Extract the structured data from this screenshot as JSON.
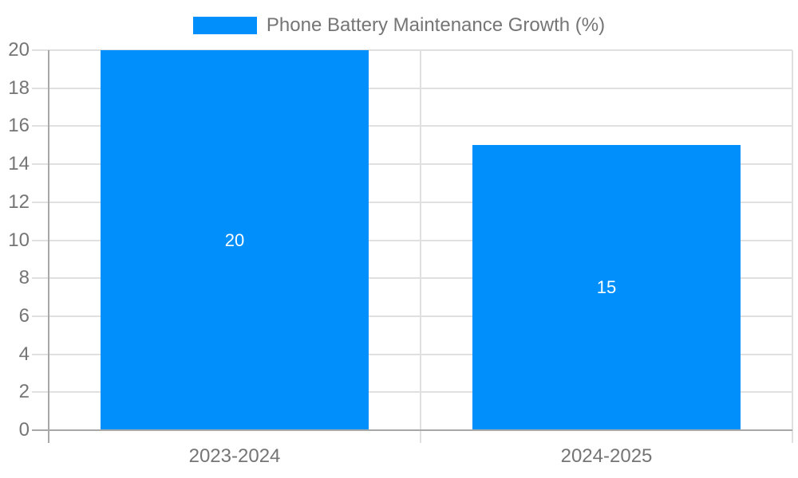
{
  "window": {
    "background": "#ffffff"
  },
  "colors": {
    "bar": "#008FFB",
    "grid_line": "#e0e0e0",
    "axis_line": "#a8a8a8",
    "tick_label": "#757575",
    "legend_text": "#757575",
    "data_label": "#ffffff"
  },
  "legend": {
    "label": "Phone Battery Maintenance Growth (%)",
    "position": "top-center"
  },
  "chart_data": {
    "type": "bar",
    "title": "Phone Battery Maintenance Growth (%)",
    "categories": [
      "2023-2024",
      "2024-2025"
    ],
    "series": [
      {
        "name": "Phone Battery Maintenance Growth (%)",
        "values": [
          20,
          15
        ]
      }
    ],
    "data_labels": [
      "20",
      "15"
    ],
    "xlabel": "",
    "ylabel": "",
    "ylim": [
      0,
      20
    ],
    "yticks": [
      0,
      2,
      4,
      6,
      8,
      10,
      12,
      14,
      16,
      18,
      20
    ],
    "grid": true,
    "legend_position": "top",
    "bar_color": "#008FFB"
  }
}
